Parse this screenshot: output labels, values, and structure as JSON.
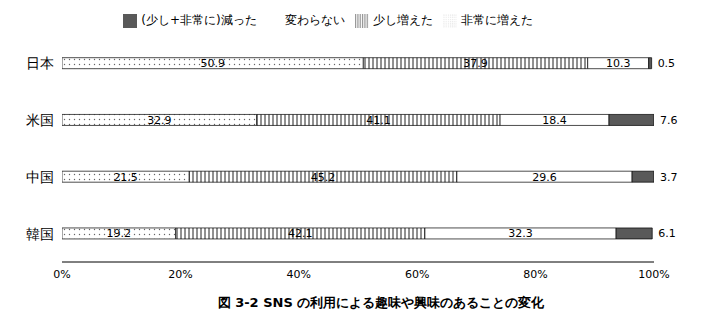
{
  "chart_data": {
    "type": "bar",
    "title": "図 3-2 SNS の利用による趣味や興味のあることの変化",
    "orientation": "horizontal",
    "stacked": true,
    "data_labels": true,
    "grid": false,
    "legend": "top",
    "categories": [
      "日本",
      "米国",
      "中国",
      "韓国"
    ],
    "series": [
      {
        "name": "非常に増えた",
        "color": "#ffffff",
        "values": [
          50.9,
          32.9,
          21.5,
          19.2
        ]
      },
      {
        "name": "少し増えた",
        "color": "#ffffff",
        "values": [
          37.9,
          41.1,
          45.2,
          42.1
        ]
      },
      {
        "name": "変わらない",
        "color": "#ffffff",
        "values": [
          10.3,
          18.4,
          29.6,
          32.3
        ]
      },
      {
        "name": "(少し+非常に)減った",
        "color": "#595959",
        "values": [
          0.5,
          7.6,
          3.7,
          6.1
        ]
      }
    ],
    "xlim": [
      0,
      100
    ],
    "xticks": [
      {
        "value": 0,
        "label": "0%"
      },
      {
        "value": 20,
        "label": "20%"
      },
      {
        "value": 40,
        "label": "40%"
      },
      {
        "value": 60,
        "label": "60%"
      },
      {
        "value": 80,
        "label": "80%"
      },
      {
        "value": 100,
        "label": "100%"
      }
    ]
  }
}
